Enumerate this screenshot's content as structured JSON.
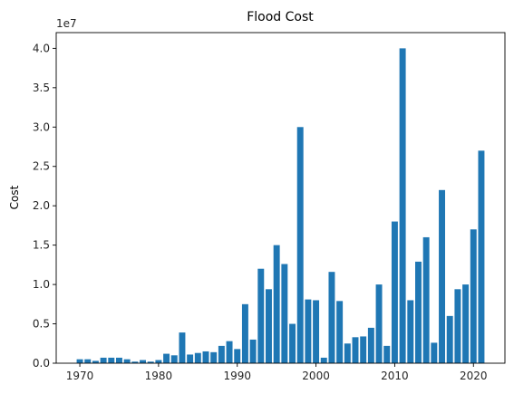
{
  "chart_data": {
    "type": "bar",
    "title": "Flood Cost",
    "xlabel": "",
    "ylabel": "Cost",
    "y_offset_text": "1e7",
    "xlim": [
      1967.0,
      1974.0
    ],
    "ylim": [
      0,
      4.2
    ],
    "x_ticks": [
      "1970",
      "1980",
      "1990",
      "2000",
      "2010",
      "2020"
    ],
    "y_ticks": [
      "0.0",
      "0.5",
      "1.0",
      "1.5",
      "2.0",
      "2.5",
      "3.0",
      "3.5",
      "4.0"
    ],
    "bar_color": "#1f77b4",
    "grid": false,
    "x": [
      1970,
      1971,
      1972,
      1973,
      1974,
      1975,
      1976,
      1977,
      1978,
      1979,
      1980,
      1981,
      1982,
      1983,
      1984,
      1985,
      1986,
      1987,
      1988,
      1989,
      1990,
      1991,
      1992,
      1993,
      1994,
      1995,
      1996,
      1997,
      1998,
      1999,
      2000,
      2001,
      2002,
      2003,
      2004,
      2005,
      2006,
      2007,
      2008,
      2009,
      2010,
      2011,
      2012,
      2013,
      2014,
      2015,
      2016,
      2017,
      2018,
      2019,
      2020,
      2021
    ],
    "values": [
      0.05,
      0.05,
      0.03,
      0.07,
      0.07,
      0.07,
      0.05,
      0.02,
      0.04,
      0.02,
      0.04,
      0.12,
      0.1,
      0.39,
      0.11,
      0.13,
      0.15,
      0.14,
      0.22,
      0.28,
      0.18,
      0.75,
      0.3,
      1.2,
      0.94,
      1.5,
      1.26,
      0.5,
      3.0,
      0.81,
      0.8,
      0.07,
      1.16,
      0.79,
      0.25,
      0.33,
      0.34,
      0.45,
      1.0,
      0.22,
      1.8,
      4.0,
      0.8,
      1.29,
      1.6,
      0.26,
      2.2,
      0.6,
      0.94,
      1.0,
      1.7,
      2.7
    ]
  }
}
